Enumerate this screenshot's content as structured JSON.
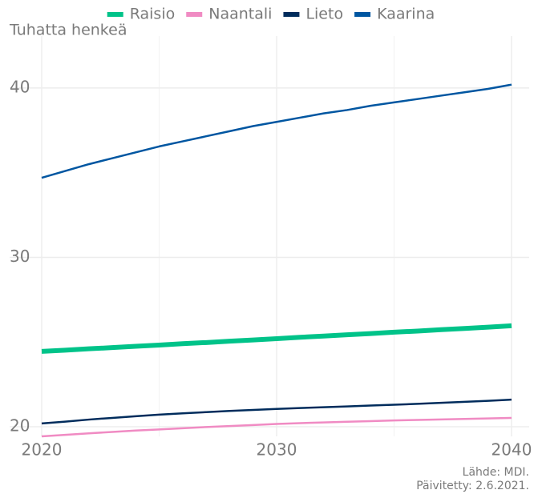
{
  "chart_data": {
    "type": "line",
    "y_label": "Tuhatta henkeä",
    "source": "Lähde: MDI.",
    "updated": "Päivitetty: 2.6.2021.",
    "x": [
      2020,
      2021,
      2022,
      2023,
      2024,
      2025,
      2026,
      2027,
      2028,
      2029,
      2030,
      2031,
      2032,
      2033,
      2034,
      2035,
      2036,
      2037,
      2038,
      2039,
      2040
    ],
    "series": [
      {
        "name": "Raisio",
        "color": "#00c389",
        "width": 6,
        "values": [
          24.45,
          24.52,
          24.6,
          24.67,
          24.75,
          24.82,
          24.9,
          24.97,
          25.05,
          25.12,
          25.2,
          25.28,
          25.35,
          25.43,
          25.5,
          25.58,
          25.65,
          25.73,
          25.8,
          25.88,
          25.96
        ]
      },
      {
        "name": "Naantali",
        "color": "#f08bc3",
        "width": 2.5,
        "values": [
          19.43,
          19.52,
          19.61,
          19.69,
          19.77,
          19.84,
          19.91,
          19.98,
          20.04,
          20.1,
          20.16,
          20.21,
          20.25,
          20.29,
          20.33,
          20.37,
          20.4,
          20.43,
          20.46,
          20.49,
          20.52
        ]
      },
      {
        "name": "Lieto",
        "color": "#002c5c",
        "width": 2.5,
        "values": [
          20.19,
          20.3,
          20.42,
          20.52,
          20.62,
          20.71,
          20.79,
          20.86,
          20.93,
          20.99,
          21.05,
          21.1,
          21.15,
          21.2,
          21.25,
          21.3,
          21.35,
          21.41,
          21.47,
          21.53,
          21.6
        ]
      },
      {
        "name": "Kaarina",
        "color": "#0056a1",
        "width": 2.5,
        "values": [
          34.7,
          35.1,
          35.5,
          35.85,
          36.2,
          36.55,
          36.85,
          37.15,
          37.45,
          37.75,
          38.0,
          38.25,
          38.5,
          38.7,
          38.95,
          39.15,
          39.35,
          39.55,
          39.75,
          39.95,
          40.2
        ]
      }
    ],
    "xlim": [
      2020,
      2040
    ],
    "xticks": [
      2020,
      2030,
      2040
    ],
    "ylim": [
      19.43,
      43.07
    ],
    "yticks": [
      20,
      30,
      40
    ],
    "grid": true,
    "legend": "top"
  }
}
